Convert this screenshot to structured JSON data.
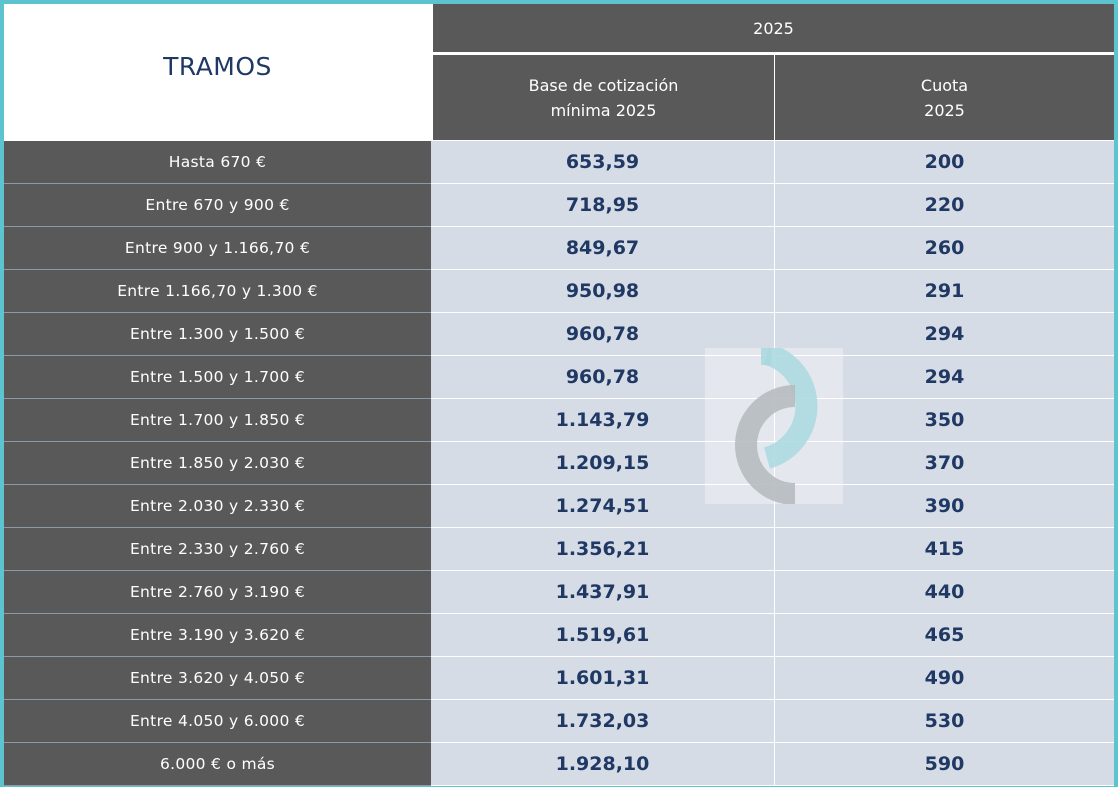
{
  "table": {
    "tramos_header": "TRAMOS",
    "year_header": "2025",
    "base_header_line1": "Base de cotización",
    "base_header_line2": "mínima 2025",
    "cuota_header_line1": "Cuota",
    "cuota_header_line2": "2025",
    "rows": [
      {
        "tramo": "Hasta 670 €",
        "base": "653,59",
        "cuota": "200"
      },
      {
        "tramo": "Entre 670 y 900 €",
        "base": "718,95",
        "cuota": "220"
      },
      {
        "tramo": "Entre 900 y 1.166,70 €",
        "base": "849,67",
        "cuota": "260"
      },
      {
        "tramo": "Entre 1.166,70 y 1.300 €",
        "base": "950,98",
        "cuota": "291"
      },
      {
        "tramo": "Entre 1.300 y 1.500 €",
        "base": "960,78",
        "cuota": "294"
      },
      {
        "tramo": "Entre 1.500 y 1.700 €",
        "base": "960,78",
        "cuota": "294"
      },
      {
        "tramo": "Entre 1.700 y 1.850 €",
        "base": "1.143,79",
        "cuota": "350"
      },
      {
        "tramo": "Entre 1.850 y 2.030 €",
        "base": "1.209,15",
        "cuota": "370"
      },
      {
        "tramo": "Entre 2.030 y 2.330 €",
        "base": "1.274,51",
        "cuota": "390"
      },
      {
        "tramo": "Entre 2.330 y 2.760 €",
        "base": "1.356,21",
        "cuota": "415"
      },
      {
        "tramo": "Entre 2.760 y 3.190 €",
        "base": "1.437,91",
        "cuota": "440"
      },
      {
        "tramo": "Entre 3.190 y 3.620 €",
        "base": "1.519,61",
        "cuota": "465"
      },
      {
        "tramo": "Entre 3.620 y 4.050 €",
        "base": "1.601,31",
        "cuota": "490"
      },
      {
        "tramo": "Entre 4.050 y 6.000 €",
        "base": "1.732,03",
        "cuota": "530"
      },
      {
        "tramo": "6.000 € o más",
        "base": "1.928,10",
        "cuota": "590"
      }
    ]
  },
  "colors": {
    "frame": "#5dc4cf",
    "header_bg": "#595959",
    "value_bg": "#d6dce5",
    "value_text": "#1f3864"
  },
  "watermark": {
    "icon": "brand-logo-icon"
  }
}
